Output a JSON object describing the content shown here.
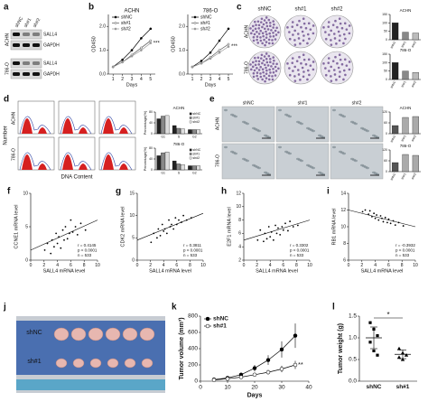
{
  "panel_letters": [
    "a",
    "b",
    "c",
    "d",
    "e",
    "f",
    "g",
    "h",
    "i",
    "j",
    "k",
    "l"
  ],
  "panels": {
    "a": {
      "lanes": [
        "shNC",
        "sh#1",
        "sh#2"
      ],
      "cell_lines": [
        "ACHN",
        "786-O"
      ],
      "bands": [
        "SALL4",
        "GAPDH",
        "SALL4",
        "GAPDH"
      ]
    },
    "c": {
      "columns": [
        "shNC",
        "sh#1",
        "sh#2"
      ],
      "rows": [
        "ACHN",
        "786-O"
      ]
    },
    "d": {
      "columns": [
        "shNC",
        "sh#1",
        "sh#2"
      ],
      "rows": [
        "ACHN",
        "786-O"
      ],
      "y_label": "Number",
      "x_label": "DNA Content"
    },
    "e": {
      "columns": [
        "shNC",
        "sh#1",
        "sh#2"
      ],
      "rows": [
        "ACHN",
        "786-O"
      ]
    },
    "j": {
      "rows": [
        "shNC",
        "sh#1"
      ]
    }
  },
  "chart_data": [
    {
      "type": "line",
      "title": "ACHN",
      "x": [
        1,
        2,
        3,
        4,
        5
      ],
      "xlim": [
        0.5,
        5.5
      ],
      "xticks": [
        1,
        2,
        3,
        4,
        5
      ],
      "ylim": [
        0,
        2.5
      ],
      "yticks": [
        {
          "value": 0,
          "label": "0.0"
        },
        {
          "value": 1,
          "label": "1.0"
        },
        {
          "value": 2,
          "label": "2.0"
        }
      ],
      "xlabel": "Days",
      "ylabel": "OD450",
      "legend": "upper left",
      "annotation": "***",
      "series": [
        {
          "name": "shNC",
          "color": "#000000",
          "values": [
            0.3,
            0.6,
            1.0,
            1.5,
            1.9
          ]
        },
        {
          "name": "sh#1",
          "color": "#555555",
          "values": [
            0.3,
            0.5,
            0.8,
            1.1,
            1.4
          ]
        },
        {
          "name": "sh#2",
          "color": "#999999",
          "values": [
            0.3,
            0.5,
            0.75,
            1.0,
            1.3
          ]
        }
      ]
    },
    {
      "type": "line",
      "title": "786-O",
      "x": [
        1,
        2,
        3,
        4,
        5
      ],
      "xlim": [
        0.5,
        5.5
      ],
      "xticks": [
        1,
        2,
        3,
        4,
        5
      ],
      "ylim": [
        0,
        2.5
      ],
      "yticks": [
        {
          "value": 0,
          "label": "0.0"
        },
        {
          "value": 1,
          "label": "1.0"
        },
        {
          "value": 2,
          "label": "2.0"
        }
      ],
      "xlabel": "Days",
      "ylabel": "OD450",
      "legend": "upper left",
      "annotation": "***",
      "series": [
        {
          "name": "shNC",
          "color": "#000000",
          "values": [
            0.3,
            0.55,
            0.9,
            1.4,
            1.9
          ]
        },
        {
          "name": "sh#1",
          "color": "#555555",
          "values": [
            0.3,
            0.45,
            0.7,
            1.0,
            1.25
          ]
        },
        {
          "name": "sh#2",
          "color": "#999999",
          "values": [
            0.3,
            0.45,
            0.65,
            0.9,
            1.15
          ]
        }
      ]
    },
    {
      "type": "bar",
      "title": "ACHN",
      "categories": [
        "shNC",
        "sh#1",
        "sh#2"
      ],
      "values": [
        100,
        45,
        40
      ],
      "color": [
        "#222222",
        "#888888",
        "#bbbbbb"
      ],
      "ylim": [
        0,
        150
      ],
      "yticks": [
        0,
        50,
        100,
        150
      ]
    },
    {
      "type": "bar",
      "title": "786-O",
      "categories": [
        "shNC",
        "sh#1",
        "sh#2"
      ],
      "values": [
        100,
        50,
        42
      ],
      "color": [
        "#222222",
        "#888888",
        "#bbbbbb"
      ],
      "ylim": [
        0,
        150
      ],
      "yticks": [
        0,
        50,
        100,
        150
      ]
    },
    {
      "type": "bar",
      "title": "ACHN",
      "categories": [
        "G1",
        "S",
        "G2"
      ],
      "ylim": [
        0,
        80
      ],
      "yticks": [
        0,
        40,
        80
      ],
      "ylabel": "Percentage(%)",
      "legend": "upper right",
      "series": [
        {
          "name": "shNC",
          "color": "#222222",
          "values": [
            55,
            30,
            15
          ]
        },
        {
          "name": "sh#1",
          "color": "#888888",
          "values": [
            65,
            20,
            15
          ]
        },
        {
          "name": "sh#2",
          "color": "#dddddd",
          "values": [
            67,
            18,
            15
          ]
        }
      ]
    },
    {
      "type": "bar",
      "title": "786-O",
      "categories": [
        "G1",
        "S",
        "G2"
      ],
      "ylim": [
        0,
        80
      ],
      "yticks": [
        0,
        40,
        80
      ],
      "ylabel": "Percentage(%)",
      "legend": "upper right",
      "series": [
        {
          "name": "shNC",
          "color": "#222222",
          "values": [
            52,
            33,
            15
          ]
        },
        {
          "name": "sh#1",
          "color": "#888888",
          "values": [
            63,
            22,
            15
          ]
        },
        {
          "name": "sh#2",
          "color": "#dddddd",
          "values": [
            66,
            19,
            15
          ]
        }
      ]
    },
    {
      "type": "bar",
      "title": "ACHN",
      "categories": [
        "shNC",
        "sh#1",
        "sh#2"
      ],
      "values": [
        45,
        90,
        95
      ],
      "color": [
        "#555555",
        "#aaaaaa",
        "#aaaaaa"
      ],
      "ylim": [
        0,
        120
      ],
      "yticks": [
        0,
        60,
        120
      ]
    },
    {
      "type": "bar",
      "title": "786-O",
      "categories": [
        "shNC",
        "sh#1",
        "sh#2"
      ],
      "values": [
        50,
        95,
        90
      ],
      "color": [
        "#555555",
        "#aaaaaa",
        "#aaaaaa"
      ],
      "ylim": [
        0,
        120
      ],
      "yticks": [
        0,
        60,
        120
      ]
    },
    {
      "type": "scatter",
      "xlabel": "SALL4 mRNA level",
      "ylabel": "CCNE1 mRNA level",
      "x": [
        2.1,
        2.5,
        3,
        3.2,
        3.5,
        3.8,
        4,
        4.2,
        4.5,
        4.8,
        5,
        5.2,
        5.5,
        5.8,
        6,
        6.3,
        6.7,
        7,
        7.5,
        8.2
      ],
      "values": [
        1.5,
        2.5,
        1,
        3,
        2,
        4,
        2.5,
        3.5,
        1.8,
        4.5,
        3,
        5,
        3.2,
        4,
        6,
        4.2,
        5,
        3.8,
        5.5,
        4.5
      ],
      "trend_line": {
        "x": [
          0,
          10
        ],
        "y": [
          1.5,
          6
        ]
      },
      "xlim": [
        0,
        10
      ],
      "xticks": [
        0,
        2,
        4,
        6,
        8,
        10
      ],
      "ylim": [
        0,
        10
      ],
      "yticks": [
        0,
        5,
        10
      ],
      "stats": [
        "r = 0.4145",
        "p < 0.0001",
        "n = 533"
      ]
    },
    {
      "type": "scatter",
      "xlabel": "SALL4 mRNA level",
      "ylabel": "CDK2 mRNA level",
      "x": [
        2.1,
        2.5,
        3,
        3.2,
        3.5,
        3.8,
        4,
        4.2,
        4.5,
        4.8,
        5,
        5.2,
        5.5,
        5.8,
        6,
        6.3,
        6.7,
        7,
        7.5,
        8.2
      ],
      "values": [
        4,
        6,
        5,
        7,
        5.5,
        8,
        6.5,
        7,
        6,
        9,
        7.5,
        8,
        7,
        9.5,
        8,
        9,
        8.5,
        10,
        9,
        9.5
      ],
      "trend_line": {
        "x": [
          0,
          10
        ],
        "y": [
          4.5,
          10.5
        ]
      },
      "xlim": [
        0,
        10
      ],
      "xticks": [
        0,
        2,
        4,
        6,
        8,
        10
      ],
      "ylim": [
        0,
        15
      ],
      "yticks": [
        0,
        5,
        10,
        15
      ],
      "stats": [
        "r = 0.3811",
        "p < 0.0001",
        "n = 533"
      ]
    },
    {
      "type": "scatter",
      "xlabel": "SALL4 mRNA level",
      "ylabel": "E2F1 mRNA level",
      "x": [
        2.1,
        2.5,
        3,
        3.2,
        3.5,
        3.8,
        4,
        4.2,
        4.5,
        4.8,
        5,
        5.2,
        5.5,
        5.8,
        6,
        6.3,
        6.7,
        7,
        7.5,
        8.2
      ],
      "values": [
        5,
        6.5,
        4.8,
        6,
        5.2,
        7,
        5.5,
        6.2,
        5,
        7.2,
        6,
        6.8,
        5.8,
        7,
        6.5,
        7.5,
        6.4,
        7.8,
        7,
        7.2
      ],
      "trend_line": {
        "x": [
          0,
          10
        ],
        "y": [
          5,
          8
        ]
      },
      "xlim": [
        0,
        10
      ],
      "xticks": [
        0,
        2,
        4,
        6,
        8,
        10
      ],
      "ylim": [
        2,
        12
      ],
      "yticks": [
        2,
        4,
        6,
        8,
        10,
        12
      ],
      "stats": [
        "r = 0.3302",
        "p < 0.0001",
        "n = 533"
      ]
    },
    {
      "type": "scatter",
      "xlabel": "SALL4 mRNA level",
      "ylabel": "RB1 mRNA level",
      "x": [
        2.1,
        2.5,
        3,
        3.2,
        3.5,
        3.8,
        4,
        4.2,
        4.5,
        4.8,
        5,
        5.2,
        5.5,
        5.8,
        6,
        6.3,
        6.7,
        7,
        7.5,
        8.2
      ],
      "values": [
        11.8,
        12,
        11.5,
        11.9,
        11.2,
        11.6,
        11,
        11.4,
        10.8,
        11.3,
        11,
        10.6,
        11.1,
        10.5,
        10.9,
        10.4,
        10.7,
        10.2,
        10.5,
        10.1
      ],
      "trend_line": {
        "x": [
          0,
          10
        ],
        "y": [
          12,
          10
        ]
      },
      "xlim": [
        0,
        10
      ],
      "xticks": [
        0,
        2,
        4,
        6,
        8,
        10
      ],
      "ylim": [
        6,
        14
      ],
      "yticks": [
        6,
        8,
        10,
        12,
        14
      ],
      "stats": [
        "r = -0.3932",
        "p < 0.0001",
        "n = 533"
      ]
    },
    {
      "type": "line",
      "x": [
        5,
        10,
        15,
        20,
        25,
        30,
        35
      ],
      "xlim": [
        0,
        40
      ],
      "xticks": [
        0,
        10,
        20,
        30,
        40
      ],
      "ylim": [
        0,
        800
      ],
      "yticks": [
        0,
        200,
        400,
        600,
        800
      ],
      "xlabel": "Days",
      "ylabel": "Tumor volume (mm³)",
      "legend": "upper left",
      "annotation": "**",
      "series": [
        {
          "name": "shNC",
          "color": "#000000",
          "values": [
            20,
            40,
            80,
            160,
            260,
            390,
            560
          ],
          "errors": [
            5,
            10,
            20,
            40,
            60,
            100,
            150
          ]
        },
        {
          "name": "sh#1",
          "color": "#000000",
          "values": [
            15,
            30,
            50,
            80,
            110,
            150,
            200
          ],
          "errors": [
            4,
            8,
            12,
            20,
            30,
            40,
            50
          ]
        }
      ]
    },
    {
      "type": "dot",
      "categories": [
        "shNC",
        "sh#1"
      ],
      "ylabel": "Tumor weight (g)",
      "points": [
        [
          1.35,
          1.2,
          1.05,
          0.9,
          0.7,
          0.6
        ],
        [
          0.75,
          0.65,
          0.6,
          0.55,
          0.5
        ]
      ],
      "means": [
        1.0,
        0.62
      ],
      "sd": [
        0.25,
        0.1
      ],
      "ylim": [
        0,
        1.5
      ],
      "yticks": [
        {
          "value": 0,
          "label": "0.0"
        },
        {
          "value": 0.5,
          "label": "0.5"
        },
        {
          "value": 1,
          "label": "1.0"
        },
        {
          "value": 1.5,
          "label": "1.5"
        }
      ],
      "annotation": "*"
    }
  ]
}
